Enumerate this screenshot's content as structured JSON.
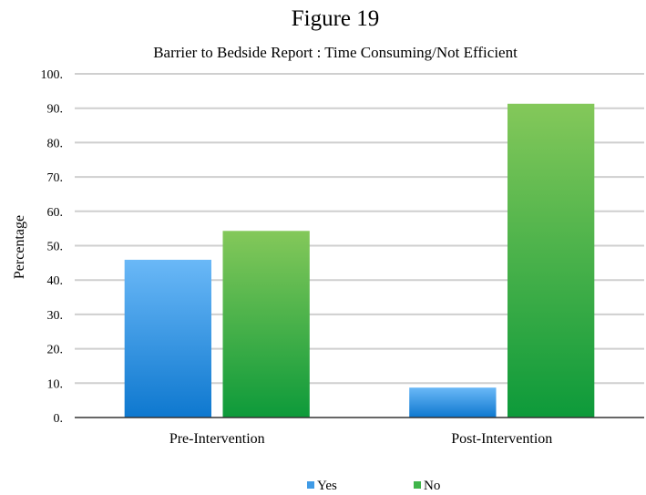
{
  "figure_label": "Figure 19",
  "chart_data": {
    "type": "bar",
    "title": "Barrier to Bedside Report : Time Consuming/Not Efficient",
    "xlabel": "",
    "ylabel": "Percentage",
    "categories": [
      "Pre-Intervention",
      "Post-Intervention"
    ],
    "series": [
      {
        "name": "Yes",
        "values": [
          45.9,
          8.7
        ],
        "color": "#3f9be6"
      },
      {
        "name": "No",
        "values": [
          54.3,
          91.3
        ],
        "color": "#3fb54a"
      }
    ],
    "ylim": [
      0,
      100
    ],
    "yticks": [
      0,
      10,
      20,
      30,
      40,
      50,
      60,
      70,
      80,
      90,
      100
    ],
    "ytick_labels": [
      "0.",
      "10.",
      "20.",
      "30.",
      "40.",
      "50.",
      "60.",
      "70.",
      "80.",
      "90.",
      "100."
    ],
    "grid": true,
    "legend_position": "bottom"
  }
}
